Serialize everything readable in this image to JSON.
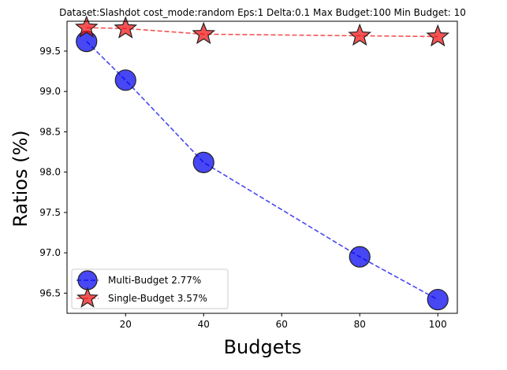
{
  "chart_data": {
    "type": "line",
    "title": "Dataset:Slashdot cost_mode:random Eps:1 Delta:0.1 Max Budget:100 Min Budget: 10",
    "xlabel": "Budgets",
    "ylabel": "Ratios (%)",
    "xlim": [
      5,
      105
    ],
    "ylim": [
      96.25,
      99.87
    ],
    "xticks": [
      20,
      40,
      60,
      80,
      100
    ],
    "yticks": [
      96.5,
      97.0,
      97.5,
      98.0,
      98.5,
      99.0,
      99.5
    ],
    "ytick_format": "fixed1",
    "grid": false,
    "legend_position": "lower-left",
    "series": [
      {
        "name": "Multi-Budget 2.77%",
        "marker": "circle",
        "line_style": "dashed",
        "color": "#0000ee",
        "x": [
          10,
          20,
          40,
          80,
          100
        ],
        "y": [
          99.62,
          99.14,
          98.12,
          96.95,
          96.42
        ]
      },
      {
        "name": "Single-Budget 3.57%",
        "marker": "star",
        "line_style": "dashed",
        "color": "#ee1111",
        "x": [
          10,
          20,
          40,
          80,
          100
        ],
        "y": [
          99.79,
          99.78,
          99.71,
          99.69,
          99.68
        ]
      }
    ]
  }
}
